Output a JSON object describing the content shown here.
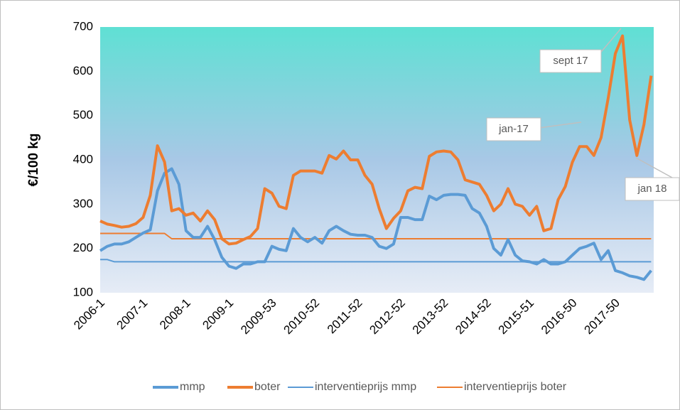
{
  "chart_data": {
    "type": "line",
    "y_label": "€/100 kg",
    "categories": [
      "2006-1",
      null,
      null,
      null,
      null,
      null,
      "2007-1",
      null,
      null,
      null,
      null,
      null,
      "2008-1",
      null,
      null,
      null,
      null,
      null,
      "2009-1",
      null,
      null,
      null,
      null,
      null,
      "2009-53",
      null,
      null,
      null,
      null,
      null,
      "2010-52",
      null,
      null,
      null,
      null,
      null,
      "2011-52",
      null,
      null,
      null,
      null,
      null,
      "2012-52",
      null,
      null,
      null,
      null,
      null,
      "2013-52",
      null,
      null,
      null,
      null,
      null,
      "2014-52",
      null,
      null,
      null,
      null,
      null,
      "2015-51",
      null,
      null,
      null,
      null,
      null,
      "2016-50",
      null,
      null,
      null,
      null,
      null,
      "2017-50",
      null,
      null,
      null,
      null,
      null
    ],
    "series": [
      {
        "name": "mmp",
        "color": "#5b9bd5",
        "width": 4,
        "values": [
          195,
          205,
          210,
          210,
          215,
          225,
          235,
          242,
          330,
          370,
          380,
          345,
          240,
          225,
          225,
          250,
          220,
          180,
          160,
          155,
          165,
          165,
          170,
          170,
          205,
          198,
          195,
          245,
          225,
          215,
          225,
          212,
          240,
          250,
          240,
          232,
          230,
          230,
          225,
          205,
          200,
          210,
          270,
          270,
          265,
          265,
          318,
          310,
          320,
          322,
          322,
          320,
          290,
          280,
          250,
          200,
          185,
          220,
          185,
          172,
          170,
          165,
          175,
          165,
          165,
          170,
          185,
          200,
          205,
          212,
          175,
          195,
          150,
          145,
          138,
          135,
          130,
          150
        ]
      },
      {
        "name": "boter",
        "color": "#ed7d31",
        "width": 4,
        "values": [
          262,
          255,
          252,
          248,
          250,
          256,
          270,
          320,
          432,
          395,
          285,
          290,
          275,
          280,
          262,
          285,
          265,
          222,
          210,
          212,
          220,
          227,
          245,
          335,
          325,
          295,
          290,
          365,
          375,
          375,
          375,
          370,
          410,
          402,
          420,
          400,
          400,
          365,
          345,
          290,
          245,
          268,
          285,
          330,
          338,
          335,
          408,
          418,
          420,
          418,
          400,
          355,
          350,
          345,
          320,
          285,
          300,
          335,
          300,
          295,
          275,
          295,
          240,
          245,
          310,
          340,
          395,
          430,
          430,
          410,
          450,
          540,
          640,
          680,
          490,
          410,
          480,
          590
        ]
      },
      {
        "name": "interventieprijs mmp",
        "color": "#5b9bd5",
        "width": 2,
        "values": [
          175,
          175,
          170,
          170,
          170,
          170,
          170,
          170,
          170,
          170,
          170,
          170,
          170,
          170,
          170,
          170,
          170,
          170,
          170,
          170,
          170,
          170,
          170,
          170,
          170,
          170,
          170,
          170,
          170,
          170,
          170,
          170,
          170,
          170,
          170,
          170,
          170,
          170,
          170,
          170,
          170,
          170,
          170,
          170,
          170,
          170,
          170,
          170,
          170,
          170,
          170,
          170,
          170,
          170,
          170,
          170,
          170,
          170,
          170,
          170,
          170,
          170,
          170,
          170,
          170,
          170,
          170,
          170,
          170,
          170,
          170,
          170,
          170,
          170,
          170,
          170,
          170,
          170
        ]
      },
      {
        "name": "interventieprijs boter",
        "color": "#ed7d31",
        "width": 2,
        "values": [
          234,
          234,
          234,
          234,
          234,
          234,
          234,
          234,
          234,
          234,
          222,
          222,
          222,
          222,
          222,
          222,
          222,
          222,
          222,
          222,
          222,
          222,
          222,
          222,
          222,
          222,
          222,
          222,
          222,
          222,
          222,
          222,
          222,
          222,
          222,
          222,
          222,
          222,
          222,
          222,
          222,
          222,
          222,
          222,
          222,
          222,
          222,
          222,
          222,
          222,
          222,
          222,
          222,
          222,
          222,
          222,
          222,
          222,
          222,
          222,
          222,
          222,
          222,
          222,
          222,
          222,
          222,
          222,
          222,
          222,
          222,
          222,
          222,
          222,
          222,
          222,
          222,
          222
        ]
      }
    ],
    "ylim": [
      100,
      700
    ],
    "yticks": [
      100,
      200,
      300,
      400,
      500,
      600,
      700
    ],
    "grid": false,
    "legend": "bottom",
    "annotations": [
      "sept 17",
      "jan-17",
      "jan 18"
    ]
  }
}
